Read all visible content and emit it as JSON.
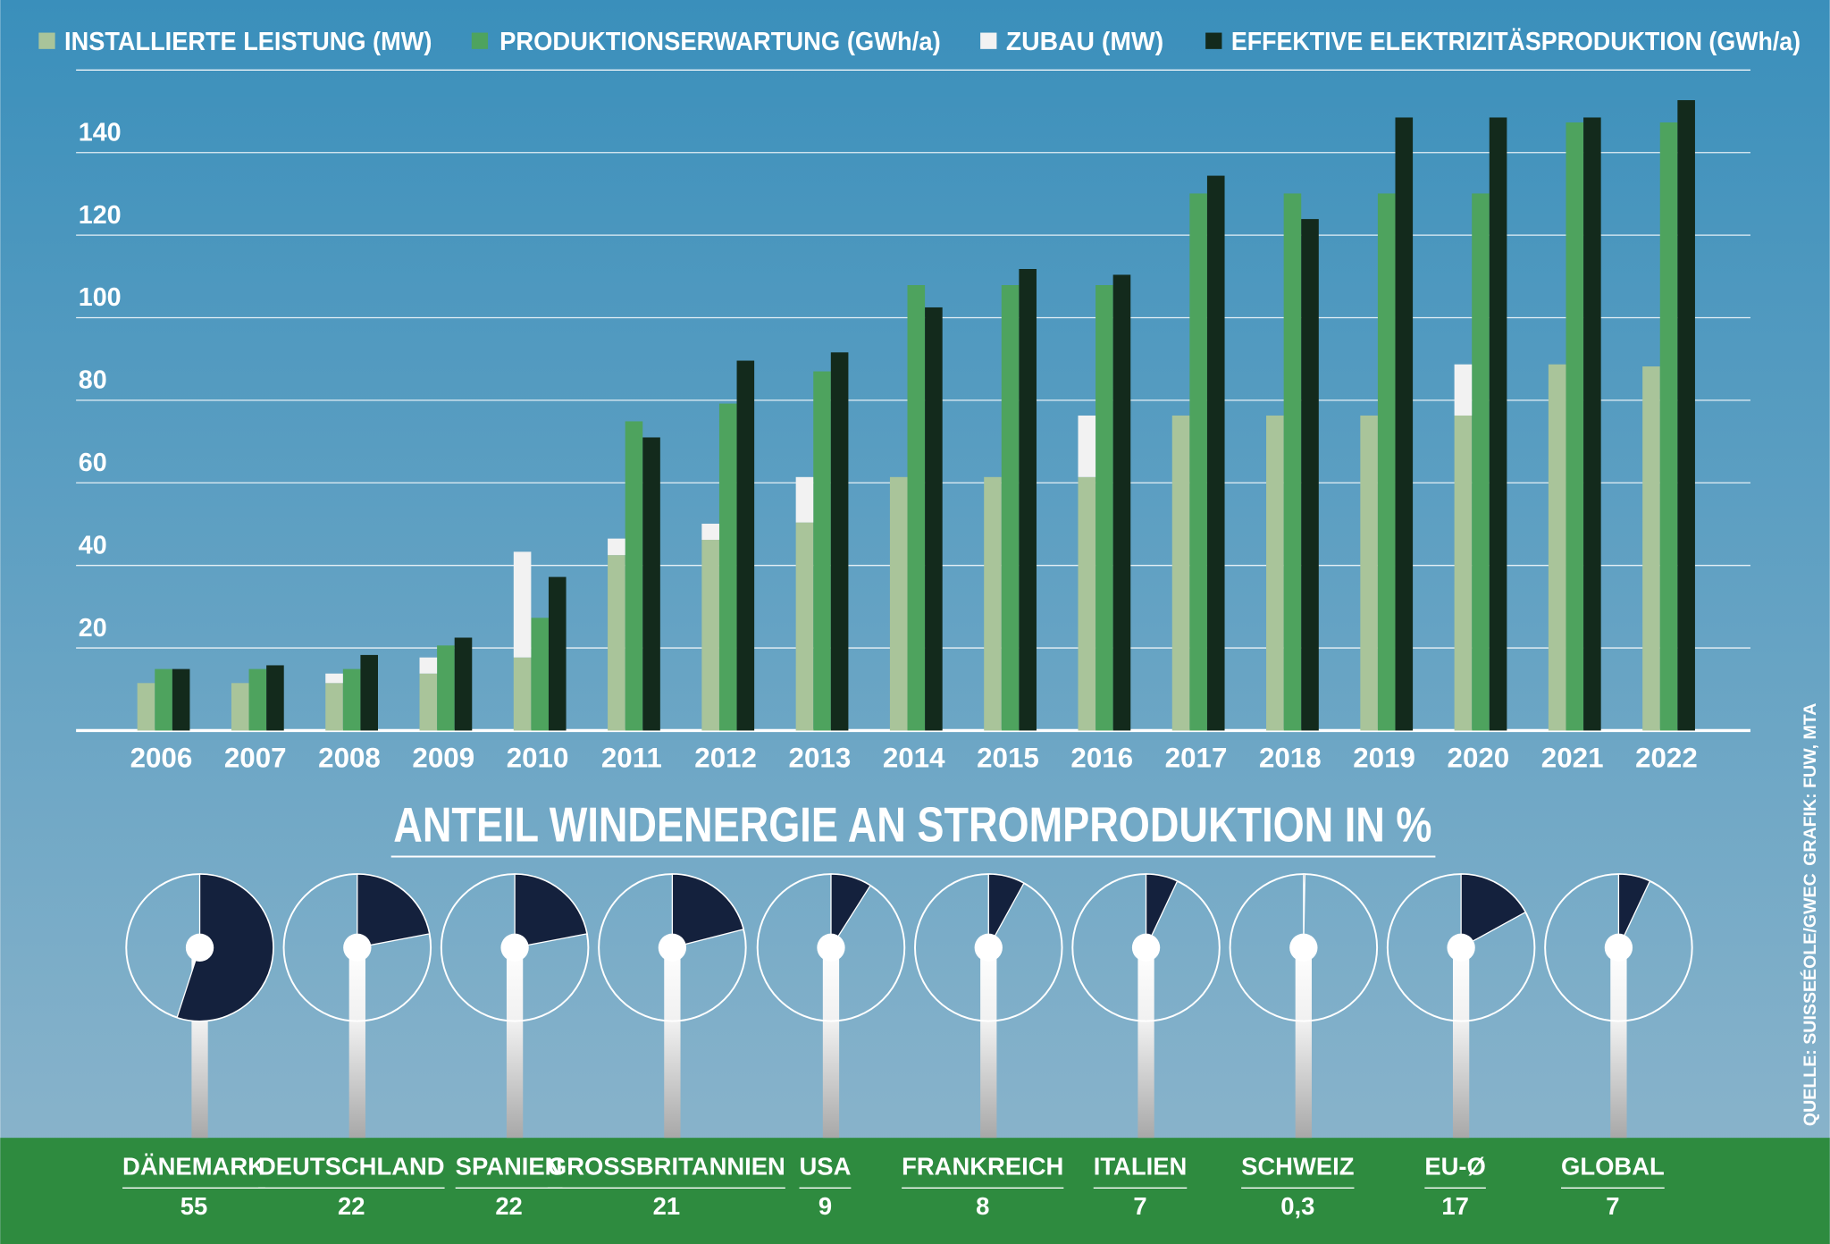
{
  "chart_data": [
    {
      "type": "bar",
      "categories": [
        "2006",
        "2007",
        "2008",
        "2009",
        "2010",
        "2011",
        "2012",
        "2013",
        "2014",
        "2015",
        "2016",
        "2017",
        "2018",
        "2019",
        "2020",
        "2021",
        "2022"
      ],
      "series": [
        {
          "name": "INSTALLIERTE LEISTUNG (MW)",
          "color": "#a9c49a",
          "values": [
            11.5,
            11.5,
            11.5,
            13.8,
            17.7,
            42.5,
            46.2,
            50.4,
            61.4,
            61.4,
            61.4,
            76.3,
            76.3,
            76.3,
            76.3,
            88.7,
            88.2
          ]
        },
        {
          "name": "PRODUKTIONSERWARTUNG (GWh/a)",
          "color": "#4ea35e",
          "values": [
            14.9,
            14.9,
            14.9,
            20.6,
            27.3,
            74.9,
            79.2,
            87.0,
            107.9,
            107.9,
            107.9,
            130.1,
            130.1,
            130.1,
            130.1,
            147.3,
            147.3
          ]
        },
        {
          "name": "ZUBAU (MW)",
          "color": "#f2f2f2",
          "stacked_on": 0,
          "values": [
            null,
            null,
            2.3,
            3.9,
            25.6,
            4.0,
            3.9,
            11.0,
            null,
            null,
            14.9,
            null,
            null,
            null,
            12.4,
            null,
            null
          ]
        },
        {
          "name": "EFFEKTIVE ELEKTRIZITÄSPRODUKTION (GWh/a)",
          "color": "#132a1c",
          "values": [
            14.9,
            15.8,
            18.3,
            22.5,
            37.2,
            71.0,
            89.6,
            91.6,
            102.5,
            111.8,
            110.4,
            134.4,
            123.9,
            148.5,
            148.5,
            148.5,
            152.7
          ]
        }
      ],
      "ylim": [
        0,
        160
      ],
      "yticks": [
        20,
        40,
        60,
        80,
        100,
        120,
        140
      ],
      "grid": true
    },
    {
      "type": "pie",
      "title": "ANTEIL WINDENERGIE AN STROMPRODUKTION IN %",
      "categories": [
        "DÄNEMARK",
        "DEUTSCHLAND",
        "SPANIEN",
        "GROSSBRITANNIEN",
        "USA",
        "FRANKREICH",
        "ITALIEN",
        "SCHWEIZ",
        "EU-Ø",
        "GLOBAL"
      ],
      "values": [
        55,
        22,
        22,
        21,
        9,
        8,
        7,
        0.3,
        17,
        7
      ],
      "value_labels": [
        "55",
        "22",
        "22",
        "21",
        "9",
        "8",
        "7",
        "0,3",
        "17",
        "7"
      ],
      "color": "#14213d"
    }
  ],
  "source": "QUELLE: SUISSEÉOLE/GWEC",
  "credit": "GRAFIK: FUW, MTA"
}
